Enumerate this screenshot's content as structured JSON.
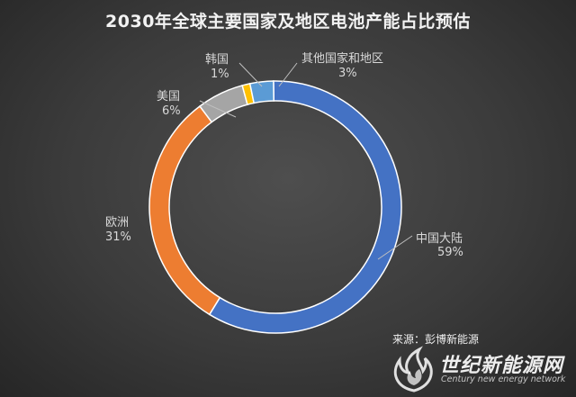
{
  "chart_data": {
    "type": "pie",
    "title": "2030年全球主要国家及地区电池产能占比预估",
    "categories": [
      "中国大陆",
      "欧洲",
      "美国",
      "韩国",
      "其他国家和地区"
    ],
    "values": [
      59,
      31,
      6,
      1,
      3
    ],
    "value_labels": [
      "59%",
      "31%",
      "6%",
      "1%",
      "3%"
    ],
    "style": "donut",
    "colors": [
      "#4472c4",
      "#ed7d31",
      "#a5a5a5",
      "#ffc000",
      "#5b9bd5"
    ],
    "legend": "none",
    "grid": false
  },
  "source": "来源：彭博新能源",
  "watermark": {
    "title": "世纪新能源网",
    "subtitle": "Century new energy network"
  }
}
